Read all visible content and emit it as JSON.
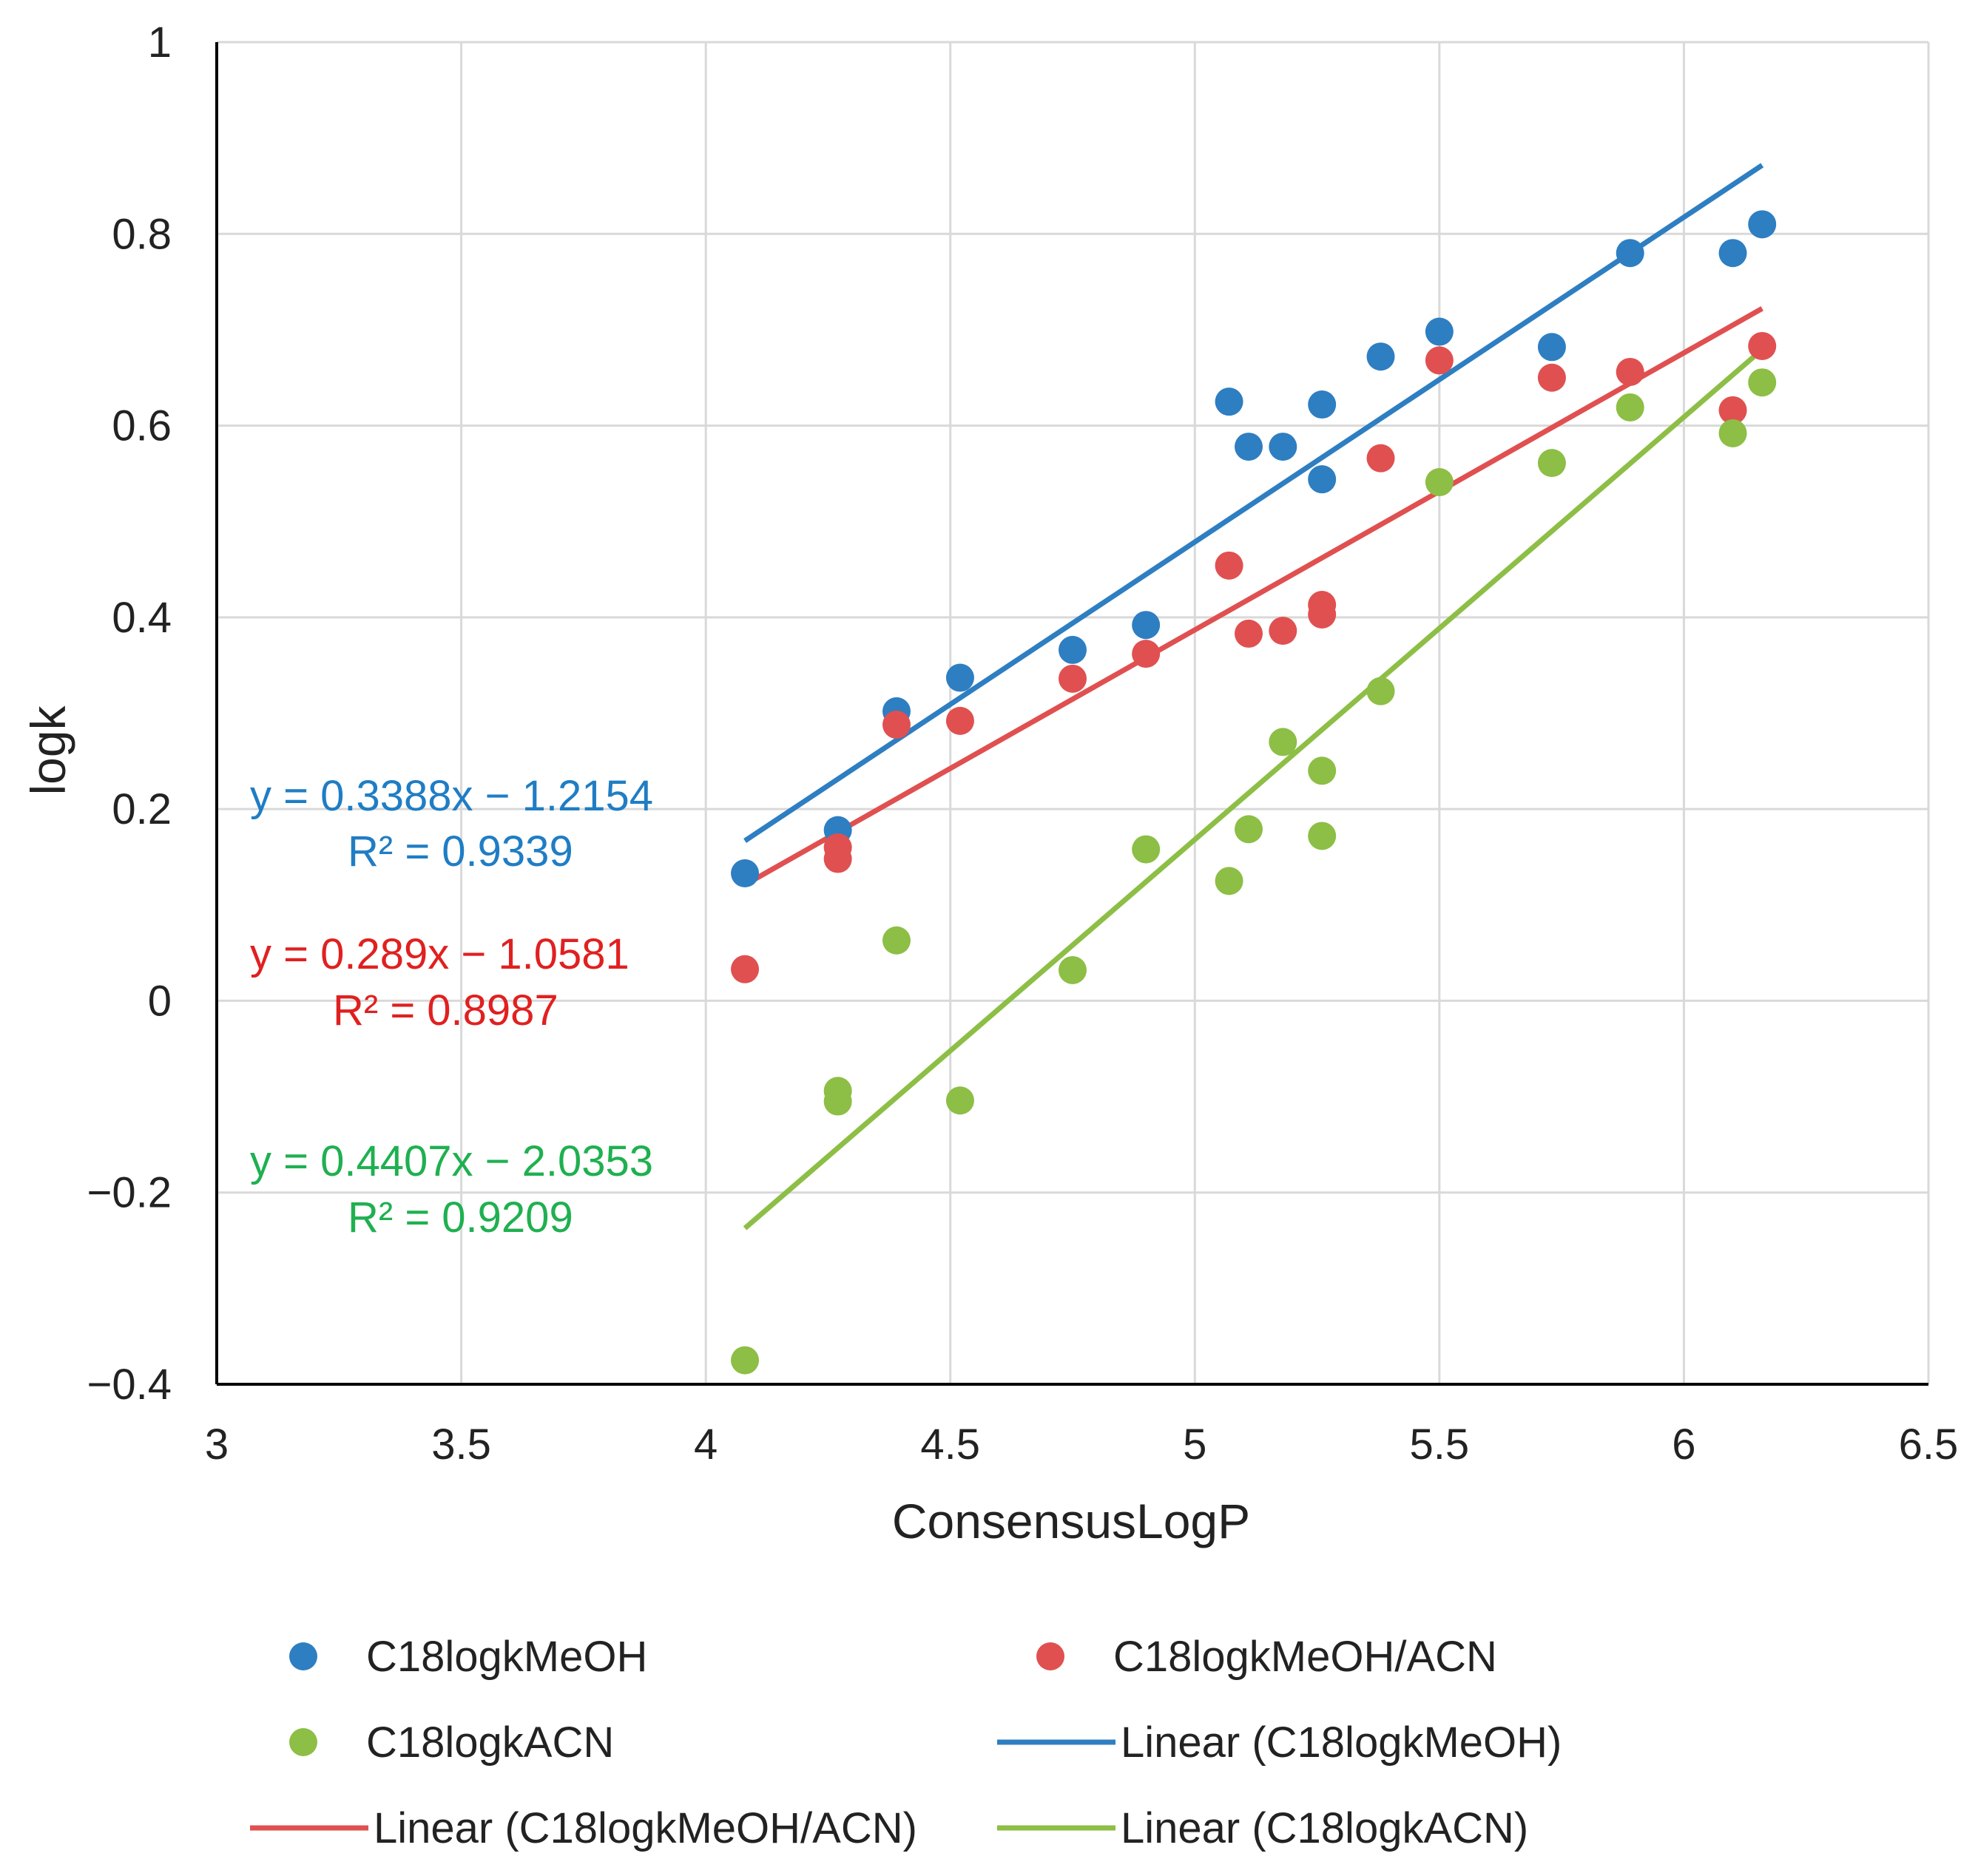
{
  "chart_data": {
    "type": "scatter",
    "title": "",
    "xlabel": "ConsensusLogP",
    "ylabel": "logk",
    "xlim": [
      3,
      6.5
    ],
    "ylim": [
      -0.4,
      1
    ],
    "grid": true,
    "x_ticks": [
      "3",
      "3.5",
      "4",
      "4.5",
      "5",
      "5.5",
      "6",
      "6.5"
    ],
    "y_ticks": [
      "−0.4",
      "−0.2",
      "0",
      "0.2",
      "0.4",
      "0.6",
      "0.8",
      "1"
    ],
    "series": [
      {
        "name": "C18logkMeOH",
        "color": "#2E7EC2",
        "x": [
          4.08,
          4.27,
          4.39,
          4.52,
          4.75,
          4.9,
          5.07,
          5.11,
          5.18,
          5.26,
          5.26,
          5.38,
          5.5,
          5.73,
          5.89,
          6.1,
          6.16
        ],
        "y": [
          0.133,
          0.178,
          0.302,
          0.337,
          0.366,
          0.392,
          0.625,
          0.578,
          0.578,
          0.622,
          0.544,
          0.672,
          0.698,
          0.682,
          0.78,
          0.78,
          0.81
        ],
        "trend": {
          "name": "Linear (C18logkMeOH)",
          "slope": 0.3388,
          "intercept": -1.2154,
          "x_range": [
            4.08,
            6.16
          ],
          "equation": "y = 0.3388x − 1.2154",
          "r2": "R² = 0.9339"
        }
      },
      {
        "name": "C18logkMeOH/ACN",
        "color": "#E05050",
        "x": [
          4.08,
          4.27,
          4.27,
          4.39,
          4.52,
          4.75,
          4.9,
          5.07,
          5.11,
          5.18,
          5.26,
          5.26,
          5.38,
          5.5,
          5.73,
          5.89,
          6.1,
          6.16
        ],
        "y": [
          0.033,
          0.16,
          0.148,
          0.288,
          0.292,
          0.336,
          0.362,
          0.454,
          0.383,
          0.386,
          0.413,
          0.403,
          0.566,
          0.668,
          0.65,
          0.656,
          0.616,
          0.683
        ],
        "trend": {
          "name": "Linear (C18logkMeOH/ACN)",
          "slope": 0.289,
          "intercept": -1.0581,
          "x_range": [
            4.08,
            6.16
          ],
          "equation": "y = 0.289x − 1.0581",
          "r2": "R² = 0.8987"
        }
      },
      {
        "name": "C18logkACN",
        "color": "#8DBE45",
        "x": [
          4.08,
          4.27,
          4.27,
          4.39,
          4.52,
          4.75,
          4.9,
          5.07,
          5.11,
          5.18,
          5.26,
          5.26,
          5.38,
          5.5,
          5.73,
          5.89,
          6.1,
          6.16
        ],
        "y": [
          -0.375,
          -0.094,
          -0.105,
          0.063,
          -0.104,
          0.032,
          0.158,
          0.125,
          0.179,
          0.27,
          0.24,
          0.172,
          0.323,
          0.541,
          0.561,
          0.619,
          0.592,
          0.645
        ],
        "trend": {
          "name": "Linear (C18logkACN)",
          "slope": 0.4407,
          "intercept": -2.0353,
          "x_range": [
            4.08,
            6.16
          ],
          "equation": "y = 0.4407x − 2.0353",
          "r2": "R² = 0.9209"
        }
      }
    ],
    "legend": {
      "position": "bottom",
      "entries": [
        {
          "label": "C18logkMeOH",
          "kind": "marker",
          "color": "#2E7EC2"
        },
        {
          "label": "C18logkMeOH/ACN",
          "kind": "marker",
          "color": "#E05050"
        },
        {
          "label": "C18logkACN",
          "kind": "marker",
          "color": "#8DBE45"
        },
        {
          "label": "Linear (C18logkMeOH)",
          "kind": "line",
          "color": "#2E7EC2"
        },
        {
          "label": "Linear (C18logkMeOH/ACN)",
          "kind": "line",
          "color": "#E05050"
        },
        {
          "label": "Linear (C18logkACN)",
          "kind": "line",
          "color": "#8DBE45"
        }
      ]
    },
    "annotation_colors": [
      "#1F7DC4",
      "#E02020",
      "#1FB050"
    ]
  }
}
